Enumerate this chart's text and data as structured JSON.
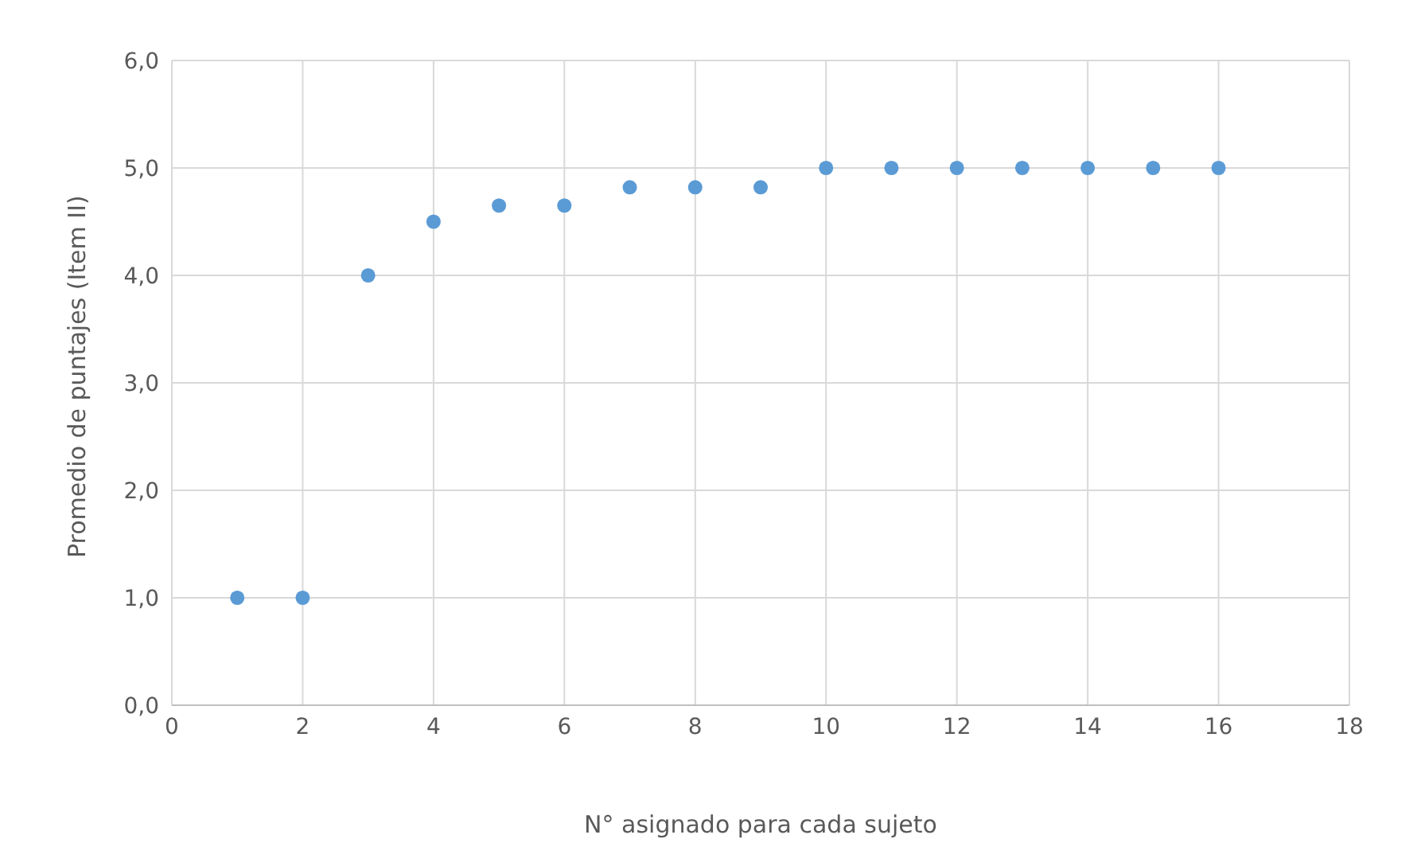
{
  "chart_data": {
    "type": "scatter",
    "xlabel": "N° asignado para cada sujeto",
    "ylabel": "Promedio de puntajes (Item II)",
    "x": [
      1,
      2,
      3,
      4,
      5,
      6,
      7,
      8,
      9,
      10,
      11,
      12,
      13,
      14,
      15,
      16
    ],
    "series": [
      {
        "color": "#5b9bd5",
        "values": [
          1,
          1,
          4,
          4.5,
          4.65,
          4.65,
          4.82,
          4.82,
          4.82,
          5,
          5,
          5,
          5,
          5,
          5,
          5
        ]
      }
    ],
    "xlim": [
      0,
      18
    ],
    "xticks": [
      0,
      2,
      4,
      6,
      8,
      10,
      12,
      14,
      16,
      18
    ],
    "ylim": [
      0,
      6
    ],
    "yticks": [
      {
        "value": 0,
        "label": "0,0"
      },
      {
        "value": 1,
        "label": "1,0"
      },
      {
        "value": 2,
        "label": "2,0"
      },
      {
        "value": 3,
        "label": "3,0"
      },
      {
        "value": 4,
        "label": "4,0"
      },
      {
        "value": 5,
        "label": "5,0"
      },
      {
        "value": 6,
        "label": "6,0"
      }
    ],
    "grid": true,
    "marker": "circle"
  }
}
